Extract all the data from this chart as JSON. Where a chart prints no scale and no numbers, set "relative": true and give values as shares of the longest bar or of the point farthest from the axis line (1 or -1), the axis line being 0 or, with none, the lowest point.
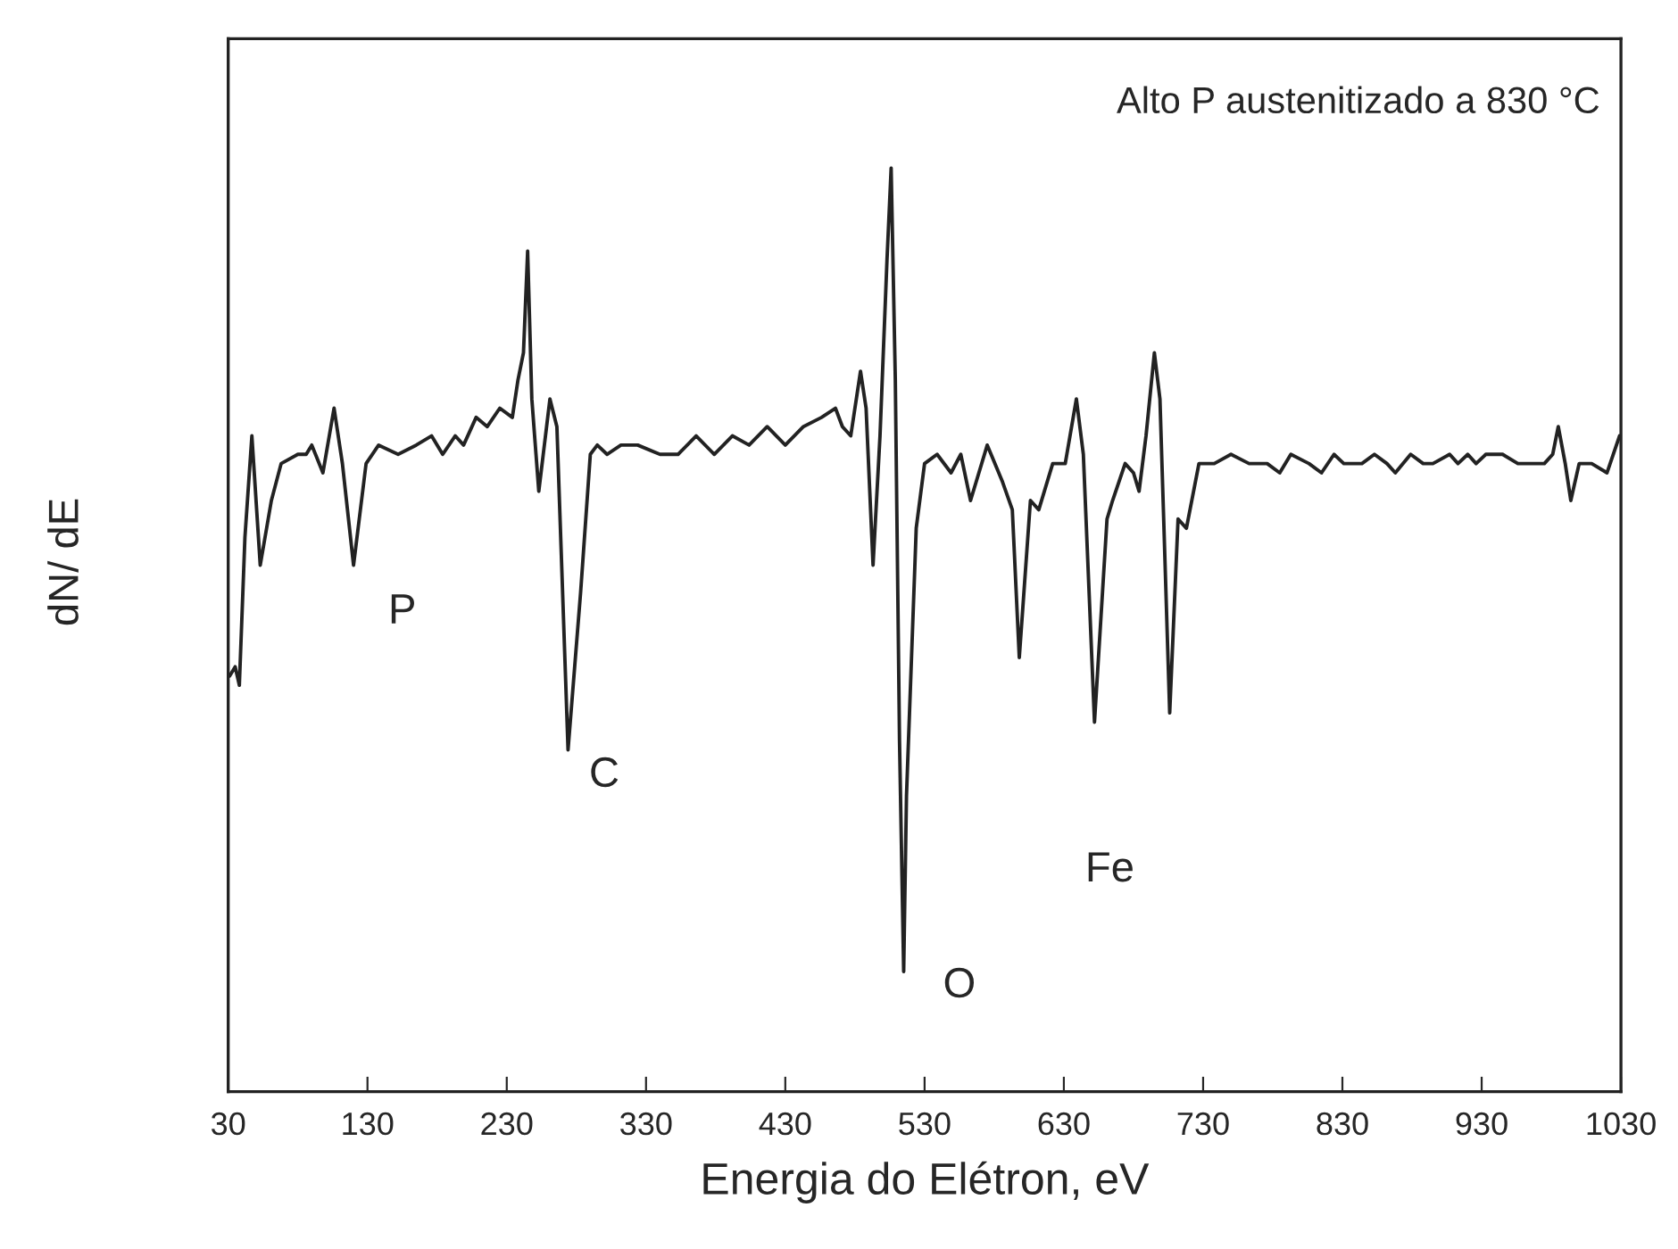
{
  "chart_data": {
    "type": "line",
    "relative": true,
    "xlabel": "Energia do Elétron, eV",
    "ylabel": "dN/ dE",
    "xlim": [
      30,
      1030
    ],
    "xticks": [
      30,
      130,
      230,
      330,
      430,
      530,
      630,
      730,
      830,
      930,
      1030
    ],
    "grid": false,
    "legend": false,
    "marker": "none",
    "line_style": "solid",
    "series": [
      {
        "color": "#222222",
        "x": [
          31,
          35,
          38,
          42,
          47,
          53,
          61,
          68,
          80,
          86,
          90,
          98,
          106,
          112,
          120,
          129,
          138,
          152,
          165,
          176,
          184,
          193,
          199,
          208,
          216,
          225,
          234,
          238,
          242,
          245,
          248,
          253,
          261,
          266,
          274,
          283,
          290,
          295,
          302,
          312,
          324,
          340,
          353,
          366,
          379,
          392,
          404,
          417,
          430,
          443,
          456,
          466,
          471,
          477,
          484,
          488,
          493,
          498,
          503,
          506,
          509,
          512,
          515,
          517,
          524,
          530,
          539,
          549,
          556,
          563,
          575,
          586,
          593,
          598,
          606,
          612,
          622,
          631,
          639,
          644,
          652,
          661,
          665,
          674,
          680,
          684,
          689,
          695,
          699,
          706,
          712,
          718,
          727,
          738,
          750,
          763,
          776,
          785,
          793,
          806,
          815,
          824,
          831,
          844,
          853,
          862,
          868,
          879,
          888,
          895,
          907,
          913,
          920,
          926,
          933,
          945,
          956,
          965,
          975,
          981,
          985,
          990,
          994,
          1000,
          1009,
          1020,
          1029
        ],
        "values": [
          0.45,
          0.46,
          0.44,
          0.6,
          0.71,
          0.57,
          0.64,
          0.68,
          0.69,
          0.69,
          0.7,
          0.67,
          0.74,
          0.68,
          0.57,
          0.68,
          0.7,
          0.69,
          0.7,
          0.71,
          0.69,
          0.71,
          0.7,
          0.73,
          0.72,
          0.74,
          0.73,
          0.77,
          0.8,
          0.91,
          0.75,
          0.65,
          0.75,
          0.72,
          0.37,
          0.54,
          0.69,
          0.7,
          0.69,
          0.7,
          0.7,
          0.69,
          0.69,
          0.71,
          0.69,
          0.71,
          0.7,
          0.72,
          0.7,
          0.72,
          0.73,
          0.74,
          0.72,
          0.71,
          0.78,
          0.74,
          0.57,
          0.71,
          0.9,
          1.0,
          0.77,
          0.38,
          0.13,
          0.32,
          0.61,
          0.68,
          0.69,
          0.67,
          0.69,
          0.64,
          0.7,
          0.66,
          0.63,
          0.47,
          0.64,
          0.63,
          0.68,
          0.68,
          0.75,
          0.69,
          0.4,
          0.62,
          0.64,
          0.68,
          0.67,
          0.65,
          0.71,
          0.8,
          0.75,
          0.41,
          0.62,
          0.61,
          0.68,
          0.68,
          0.69,
          0.68,
          0.68,
          0.67,
          0.69,
          0.68,
          0.67,
          0.69,
          0.68,
          0.68,
          0.69,
          0.68,
          0.67,
          0.69,
          0.68,
          0.68,
          0.69,
          0.68,
          0.69,
          0.68,
          0.69,
          0.69,
          0.68,
          0.68,
          0.68,
          0.69,
          0.72,
          0.68,
          0.64,
          0.68,
          0.68,
          0.67,
          0.71
        ]
      }
    ],
    "annotations": [
      "Alto P austenitizado a 830 °C",
      "P",
      "C",
      "O",
      "Fe"
    ]
  }
}
